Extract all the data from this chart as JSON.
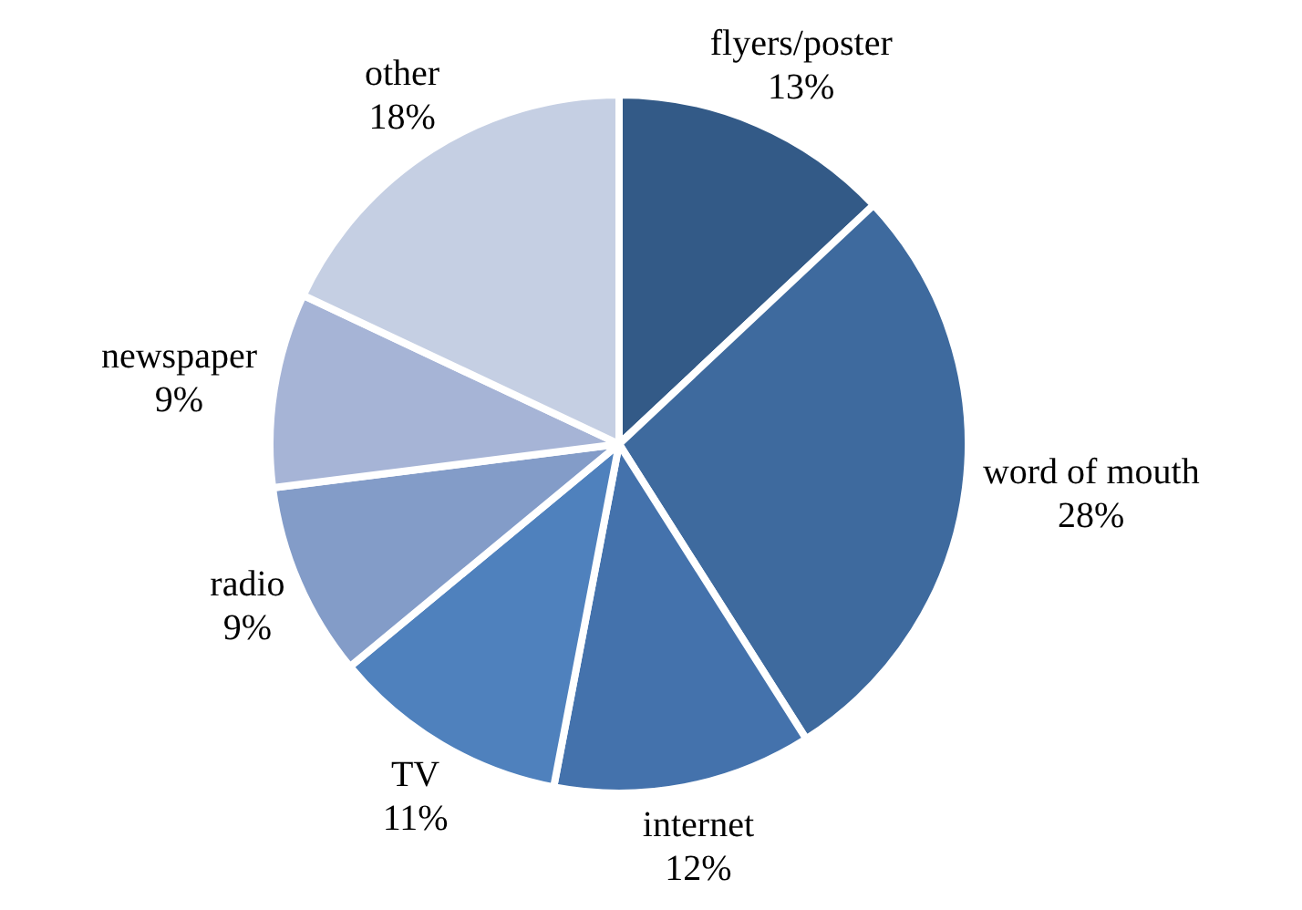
{
  "chart_data": {
    "type": "pie",
    "categories": [
      "flyers/poster",
      "word of mouth",
      "internet",
      "TV",
      "radio",
      "newspaper",
      "other"
    ],
    "values": [
      13,
      28,
      12,
      11,
      9,
      9,
      18
    ],
    "value_labels": [
      "13%",
      "28%",
      "12%",
      "11%",
      "9%",
      "9%",
      "18%"
    ],
    "colors": [
      "#335a87",
      "#3e6a9e",
      "#4472ac",
      "#4f81bd",
      "#839cc8",
      "#a6b4d6",
      "#c5cfe3"
    ],
    "legend": false
  }
}
